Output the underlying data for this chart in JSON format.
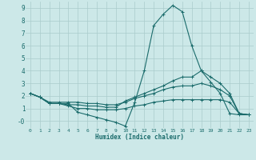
{
  "xlabel": "Humidex (Indice chaleur)",
  "xlim": [
    -0.5,
    23.5
  ],
  "ylim": [
    -0.55,
    9.5
  ],
  "xticks": [
    0,
    1,
    2,
    3,
    4,
    5,
    6,
    7,
    8,
    9,
    10,
    11,
    12,
    13,
    14,
    15,
    16,
    17,
    18,
    19,
    20,
    21,
    22,
    23
  ],
  "yticks": [
    0,
    1,
    2,
    3,
    4,
    5,
    6,
    7,
    8,
    9
  ],
  "ytick_labels": [
    "-0",
    "1",
    "2",
    "3",
    "4",
    "5",
    "6",
    "7",
    "8",
    "9"
  ],
  "bg_color": "#cce8e8",
  "grid_color": "#aacccc",
  "line_color": "#1a6b6b",
  "series": [
    {
      "x": [
        0,
        1,
        2,
        3,
        4,
        5,
        6,
        7,
        8,
        9,
        10,
        11,
        12,
        13,
        14,
        15,
        16,
        17,
        18,
        19,
        20,
        21,
        22,
        23
      ],
      "y": [
        2.2,
        1.9,
        1.4,
        1.4,
        1.4,
        0.7,
        0.5,
        0.3,
        0.1,
        -0.1,
        -0.4,
        1.5,
        4.0,
        7.6,
        8.5,
        9.2,
        8.7,
        6.0,
        4.0,
        3.1,
        2.2,
        0.6,
        0.5,
        0.5
      ]
    },
    {
      "x": [
        0,
        1,
        2,
        3,
        4,
        5,
        6,
        7,
        8,
        9,
        10,
        11,
        12,
        13,
        14,
        15,
        16,
        17,
        18,
        19,
        20,
        21,
        22,
        23
      ],
      "y": [
        2.2,
        1.9,
        1.4,
        1.4,
        1.3,
        1.3,
        1.2,
        1.2,
        1.1,
        1.1,
        1.6,
        1.9,
        2.2,
        2.5,
        2.8,
        3.2,
        3.5,
        3.5,
        4.0,
        3.5,
        3.0,
        2.2,
        0.6,
        0.5
      ]
    },
    {
      "x": [
        0,
        1,
        2,
        3,
        4,
        5,
        6,
        7,
        8,
        9,
        10,
        11,
        12,
        13,
        14,
        15,
        16,
        17,
        18,
        19,
        20,
        21,
        22,
        23
      ],
      "y": [
        2.2,
        1.9,
        1.5,
        1.5,
        1.5,
        1.5,
        1.4,
        1.4,
        1.3,
        1.3,
        1.5,
        1.8,
        2.0,
        2.2,
        2.5,
        2.7,
        2.8,
        2.8,
        3.0,
        2.8,
        2.5,
        2.0,
        0.6,
        0.5
      ]
    },
    {
      "x": [
        0,
        1,
        2,
        3,
        4,
        5,
        6,
        7,
        8,
        9,
        10,
        11,
        12,
        13,
        14,
        15,
        16,
        17,
        18,
        19,
        20,
        21,
        22,
        23
      ],
      "y": [
        2.2,
        1.9,
        1.4,
        1.4,
        1.2,
        1.0,
        1.0,
        0.9,
        0.9,
        0.9,
        1.0,
        1.2,
        1.3,
        1.5,
        1.6,
        1.7,
        1.7,
        1.7,
        1.7,
        1.7,
        1.7,
        1.5,
        0.6,
        0.5
      ]
    }
  ]
}
